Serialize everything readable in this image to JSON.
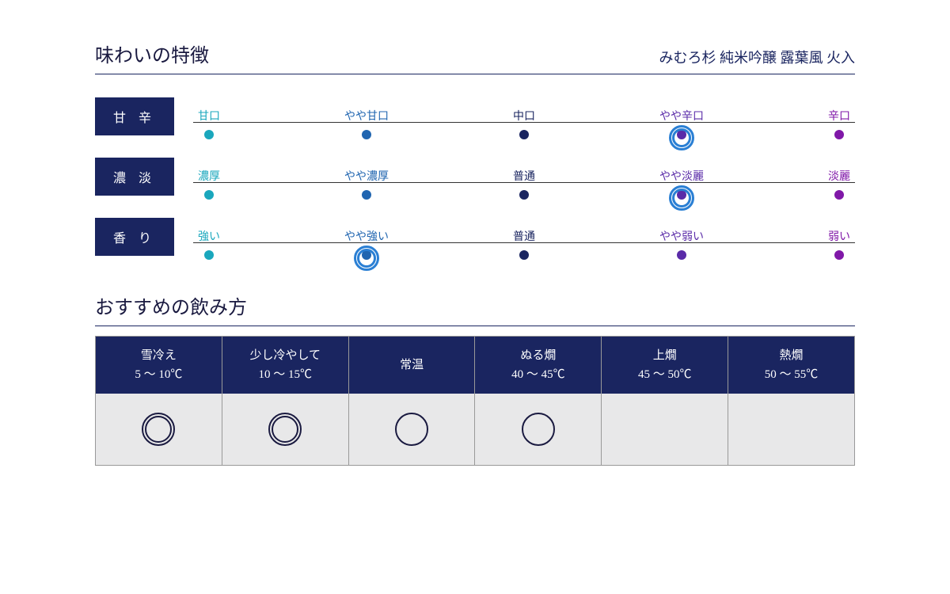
{
  "taste_section": {
    "title": "味わいの特徴",
    "product_name": "みむろ杉 純米吟醸 露葉風 火入"
  },
  "colors": {
    "navy": "#1a2560",
    "scale_colors": [
      "#1aa7bd",
      "#2065b0",
      "#1a2560",
      "#5a2ba8",
      "#8018a8"
    ],
    "ring": "#2a7fd4"
  },
  "taste_axes": [
    {
      "label": "甘 辛",
      "points": [
        "甘口",
        "やや甘口",
        "中口",
        "やや辛口",
        "辛口"
      ],
      "selected_index": 3
    },
    {
      "label": "濃 淡",
      "points": [
        "濃厚",
        "やや濃厚",
        "普通",
        "やや淡麗",
        "淡麗"
      ],
      "selected_index": 3
    },
    {
      "label": "香 り",
      "points": [
        "強い",
        "やや強い",
        "普通",
        "やや弱い",
        "弱い"
      ],
      "selected_index": 1
    }
  ],
  "serving_section": {
    "title": "おすすめの飲み方"
  },
  "serving_temps": [
    {
      "name": "雪冷え",
      "range": "5 〜 10℃",
      "mark": "double"
    },
    {
      "name": "少し冷やして",
      "range": "10 〜 15℃",
      "mark": "double"
    },
    {
      "name": "常温",
      "range": "",
      "mark": "single"
    },
    {
      "name": "ぬる燗",
      "range": "40 〜 45℃",
      "mark": "single"
    },
    {
      "name": "上燗",
      "range": "45 〜 50℃",
      "mark": ""
    },
    {
      "name": "熱燗",
      "range": "50 〜 55℃",
      "mark": ""
    }
  ]
}
